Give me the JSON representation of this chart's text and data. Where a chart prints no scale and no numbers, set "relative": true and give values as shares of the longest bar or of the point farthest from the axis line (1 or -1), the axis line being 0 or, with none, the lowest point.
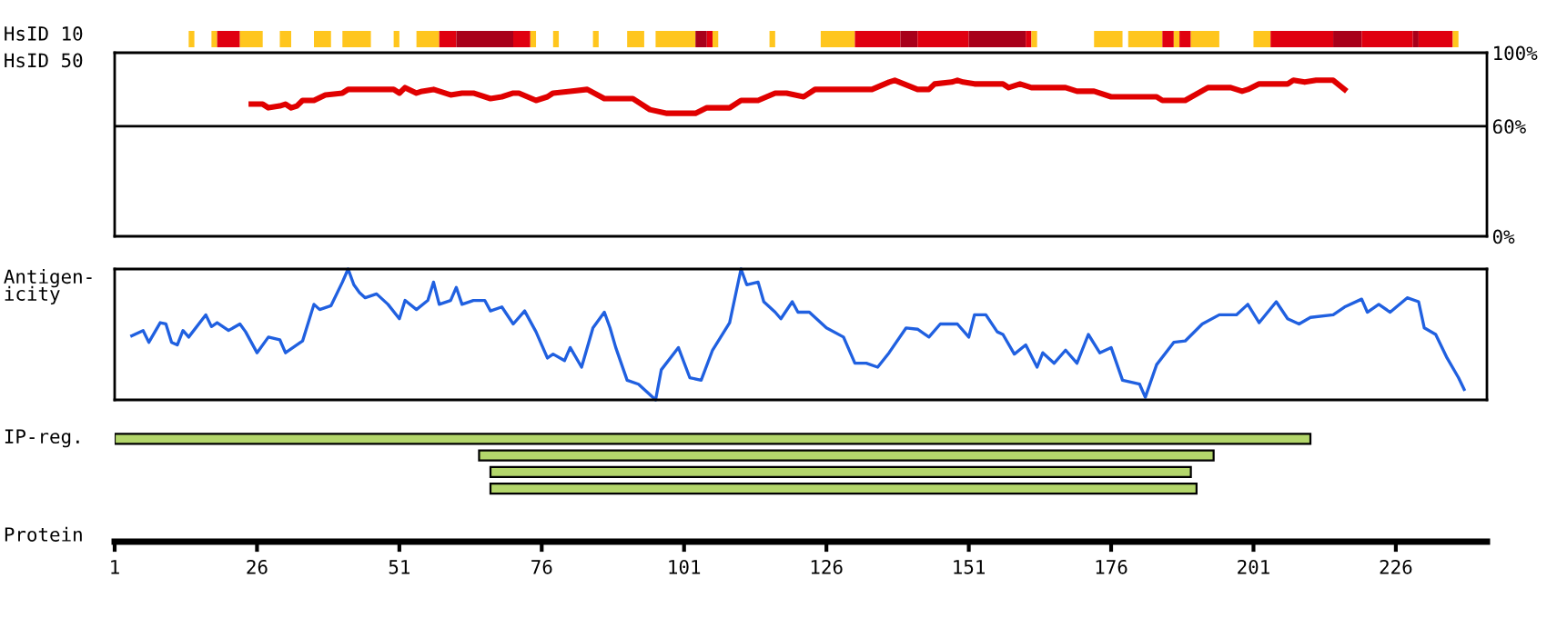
{
  "chart_data": [
    {
      "type": "bar",
      "orientation": "horizontal",
      "ylabel": "HsID 10",
      "categories": [
        null
      ],
      "xlim": [
        1,
        242
      ],
      "tick_labels": false,
      "series": [
        {
          "color": "#ffc61e",
          "base": [
            14
          ],
          "values": [
            1
          ]
        },
        {
          "color": "#ffc61e",
          "base": [
            18
          ],
          "values": [
            1
          ]
        },
        {
          "color": "#e00010",
          "base": [
            19
          ],
          "values": [
            4
          ]
        },
        {
          "color": "#ffc61e",
          "base": [
            23
          ],
          "values": [
            4
          ]
        },
        {
          "color": "#ffc61e",
          "base": [
            30
          ],
          "values": [
            2
          ]
        },
        {
          "color": "#ffc61e",
          "base": [
            36
          ],
          "values": [
            3
          ]
        },
        {
          "color": "#ffc61e",
          "base": [
            41
          ],
          "values": [
            5
          ]
        },
        {
          "color": "#ffc61e",
          "base": [
            50
          ],
          "values": [
            1
          ]
        },
        {
          "color": "#ffc61e",
          "base": [
            54
          ],
          "values": [
            4
          ]
        },
        {
          "color": "#e00010",
          "base": [
            58
          ],
          "values": [
            3
          ]
        },
        {
          "color": "#a8001a",
          "base": [
            61
          ],
          "values": [
            10
          ]
        },
        {
          "color": "#e00010",
          "base": [
            71
          ],
          "values": [
            3
          ]
        },
        {
          "color": "#ffc61e",
          "base": [
            74
          ],
          "values": [
            1
          ]
        },
        {
          "color": "#ffc61e",
          "base": [
            78
          ],
          "values": [
            1
          ]
        },
        {
          "color": "#ffc61e",
          "base": [
            85
          ],
          "values": [
            1
          ]
        },
        {
          "color": "#ffc61e",
          "base": [
            91
          ],
          "values": [
            3
          ]
        },
        {
          "color": "#ffc61e",
          "base": [
            96
          ],
          "values": [
            7
          ]
        },
        {
          "color": "#a8001a",
          "base": [
            103
          ],
          "values": [
            2
          ]
        },
        {
          "color": "#e00010",
          "base": [
            105
          ],
          "values": [
            1
          ]
        },
        {
          "color": "#ffc61e",
          "base": [
            106
          ],
          "values": [
            1
          ]
        },
        {
          "color": "#ffc61e",
          "base": [
            116
          ],
          "values": [
            1
          ]
        },
        {
          "color": "#ffc61e",
          "base": [
            125
          ],
          "values": [
            6
          ]
        },
        {
          "color": "#e00010",
          "base": [
            131
          ],
          "values": [
            8
          ]
        },
        {
          "color": "#a8001a",
          "base": [
            139
          ],
          "values": [
            3
          ]
        },
        {
          "color": "#e00010",
          "base": [
            142
          ],
          "values": [
            9
          ]
        },
        {
          "color": "#a8001a",
          "base": [
            151
          ],
          "values": [
            10
          ]
        },
        {
          "color": "#e00010",
          "base": [
            161
          ],
          "values": [
            1
          ]
        },
        {
          "color": "#ffc61e",
          "base": [
            162
          ],
          "values": [
            1
          ]
        },
        {
          "color": "#ffc61e",
          "base": [
            173
          ],
          "values": [
            5
          ]
        },
        {
          "color": "#ffc61e",
          "base": [
            179
          ],
          "values": [
            6
          ]
        },
        {
          "color": "#e00010",
          "base": [
            185
          ],
          "values": [
            2
          ]
        },
        {
          "color": "#ffc61e",
          "base": [
            187
          ],
          "values": [
            1
          ]
        },
        {
          "color": "#e00010",
          "base": [
            188
          ],
          "values": [
            2
          ]
        },
        {
          "color": "#ffc61e",
          "base": [
            190
          ],
          "values": [
            5
          ]
        },
        {
          "color": "#ffc61e",
          "base": [
            201
          ],
          "values": [
            3
          ]
        },
        {
          "color": "#e00010",
          "base": [
            204
          ],
          "values": [
            11
          ]
        },
        {
          "color": "#a8001a",
          "base": [
            215
          ],
          "values": [
            5
          ]
        },
        {
          "color": "#e00010",
          "base": [
            220
          ],
          "values": [
            9
          ]
        },
        {
          "color": "#a8001a",
          "base": [
            229
          ],
          "values": [
            1
          ]
        },
        {
          "color": "#e00010",
          "base": [
            230
          ],
          "values": [
            6
          ]
        },
        {
          "color": "#ffc61e",
          "base": [
            236
          ],
          "values": [
            1
          ]
        }
      ]
    },
    {
      "type": "line",
      "ylabel": "HsID 50",
      "xlim": [
        1,
        242
      ],
      "ylim": [
        0,
        100
      ],
      "yticks": [
        {
          "value": 0,
          "label": "0%"
        },
        {
          "value": 60,
          "label": "60%"
        },
        {
          "value": 100,
          "label": "100%"
        }
      ],
      "tick_labels": "y",
      "ref_lines": [
        {
          "axis": "y",
          "value": 60,
          "color": "#000000"
        }
      ],
      "series": [
        {
          "color": "#e00000",
          "x": [
            25,
            27,
            28,
            30,
            31,
            32,
            33,
            34,
            36,
            38,
            41,
            42,
            50,
            51,
            52,
            54,
            55,
            57,
            60,
            62,
            64,
            67,
            69,
            71,
            72,
            75,
            77,
            78,
            81,
            84,
            87,
            92,
            95,
            98,
            103,
            105,
            109,
            111,
            114,
            117,
            119,
            122,
            124,
            134,
            137,
            138,
            142,
            144,
            145,
            148,
            149,
            150,
            152,
            157,
            158,
            160,
            162,
            168,
            170,
            173,
            176,
            184,
            185,
            189,
            193,
            197,
            199,
            200,
            202,
            207,
            208,
            210,
            212,
            215,
            217
          ],
          "values": [
            72,
            72,
            70,
            71,
            72,
            70,
            71,
            74,
            74,
            77,
            78,
            80,
            80,
            78,
            81,
            78,
            79,
            80,
            77,
            78,
            78,
            75,
            76,
            78,
            78,
            74,
            76,
            78,
            79,
            80,
            75,
            75,
            69,
            67,
            67,
            70,
            70,
            74,
            74,
            78,
            78,
            76,
            80,
            80,
            84,
            85,
            80,
            80,
            83,
            84,
            85,
            84,
            83,
            83,
            81,
            83,
            81,
            81,
            79,
            79,
            76,
            76,
            74,
            74,
            81,
            81,
            79,
            80,
            83,
            83,
            85,
            84,
            85,
            85,
            80
          ]
        }
      ]
    },
    {
      "type": "line",
      "ylabel": "Antigen-\nicity",
      "relative": true,
      "xlim": [
        1,
        242
      ],
      "tick_labels": false,
      "series": [
        {
          "color": "#2060e0",
          "x": [
            4,
            6,
            7,
            9,
            10,
            11,
            12,
            13,
            14,
            17,
            18,
            19,
            21,
            23,
            24,
            26,
            28,
            30,
            31,
            34,
            36,
            37,
            39,
            41,
            42,
            43,
            44,
            45,
            47,
            49,
            51,
            52,
            54,
            56,
            57,
            58,
            60,
            61,
            62,
            64,
            66,
            67,
            69,
            71,
            73,
            75,
            77,
            78,
            80,
            81,
            83,
            85,
            87,
            88,
            89,
            91,
            93,
            96,
            97,
            100,
            102,
            104,
            106,
            109,
            111,
            112,
            114,
            115,
            117,
            118,
            120,
            121,
            123,
            126,
            129,
            131,
            133,
            135,
            137,
            140,
            142,
            144,
            146,
            149,
            151,
            152,
            154,
            156,
            157,
            159,
            161,
            163,
            164,
            166,
            168,
            170,
            172,
            174,
            176,
            178,
            181,
            182,
            184,
            187,
            189,
            192,
            195,
            198,
            200,
            202,
            205,
            207,
            209,
            211,
            215,
            217,
            220,
            221,
            223,
            225,
            228,
            230,
            231,
            233,
            235,
            237,
            238
          ],
          "values": [
            0.49,
            0.53,
            0.44,
            0.59,
            0.58,
            0.44,
            0.42,
            0.53,
            0.48,
            0.65,
            0.56,
            0.59,
            0.53,
            0.58,
            0.52,
            0.36,
            0.48,
            0.46,
            0.36,
            0.45,
            0.73,
            0.69,
            0.72,
            0.9,
            1.0,
            0.88,
            0.82,
            0.78,
            0.81,
            0.73,
            0.62,
            0.76,
            0.69,
            0.76,
            0.9,
            0.73,
            0.76,
            0.86,
            0.73,
            0.76,
            0.76,
            0.68,
            0.71,
            0.58,
            0.68,
            0.52,
            0.32,
            0.35,
            0.3,
            0.4,
            0.25,
            0.55,
            0.67,
            0.55,
            0.4,
            0.15,
            0.12,
            0,
            0.23,
            0.4,
            0.17,
            0.15,
            0.38,
            0.59,
            1.0,
            0.88,
            0.9,
            0.75,
            0.67,
            0.62,
            0.75,
            0.67,
            0.67,
            0.55,
            0.48,
            0.28,
            0.28,
            0.25,
            0.36,
            0.55,
            0.54,
            0.48,
            0.58,
            0.58,
            0.48,
            0.65,
            0.65,
            0.52,
            0.5,
            0.35,
            0.42,
            0.25,
            0.36,
            0.28,
            0.38,
            0.28,
            0.5,
            0.36,
            0.4,
            0.15,
            0.12,
            0.02,
            0.27,
            0.44,
            0.45,
            0.58,
            0.65,
            0.65,
            0.73,
            0.59,
            0.75,
            0.62,
            0.58,
            0.63,
            0.65,
            0.71,
            0.77,
            0.67,
            0.73,
            0.67,
            0.78,
            0.75,
            0.55,
            0.5,
            0.32,
            0.17,
            0.08
          ]
        }
      ]
    },
    {
      "type": "bar",
      "orientation": "horizontal",
      "ylabel": "IP-reg.",
      "xlabel": "Protein",
      "categories": [
        null,
        null,
        null,
        null
      ],
      "base": [
        1,
        65,
        67,
        67
      ],
      "values": [
        210,
        129,
        123,
        124
      ],
      "color": "#b3d66b",
      "xlim": [
        1,
        242
      ],
      "xticks": [
        1,
        26,
        51,
        76,
        101,
        126,
        151,
        176,
        201,
        226
      ],
      "tick_labels": "x"
    }
  ]
}
